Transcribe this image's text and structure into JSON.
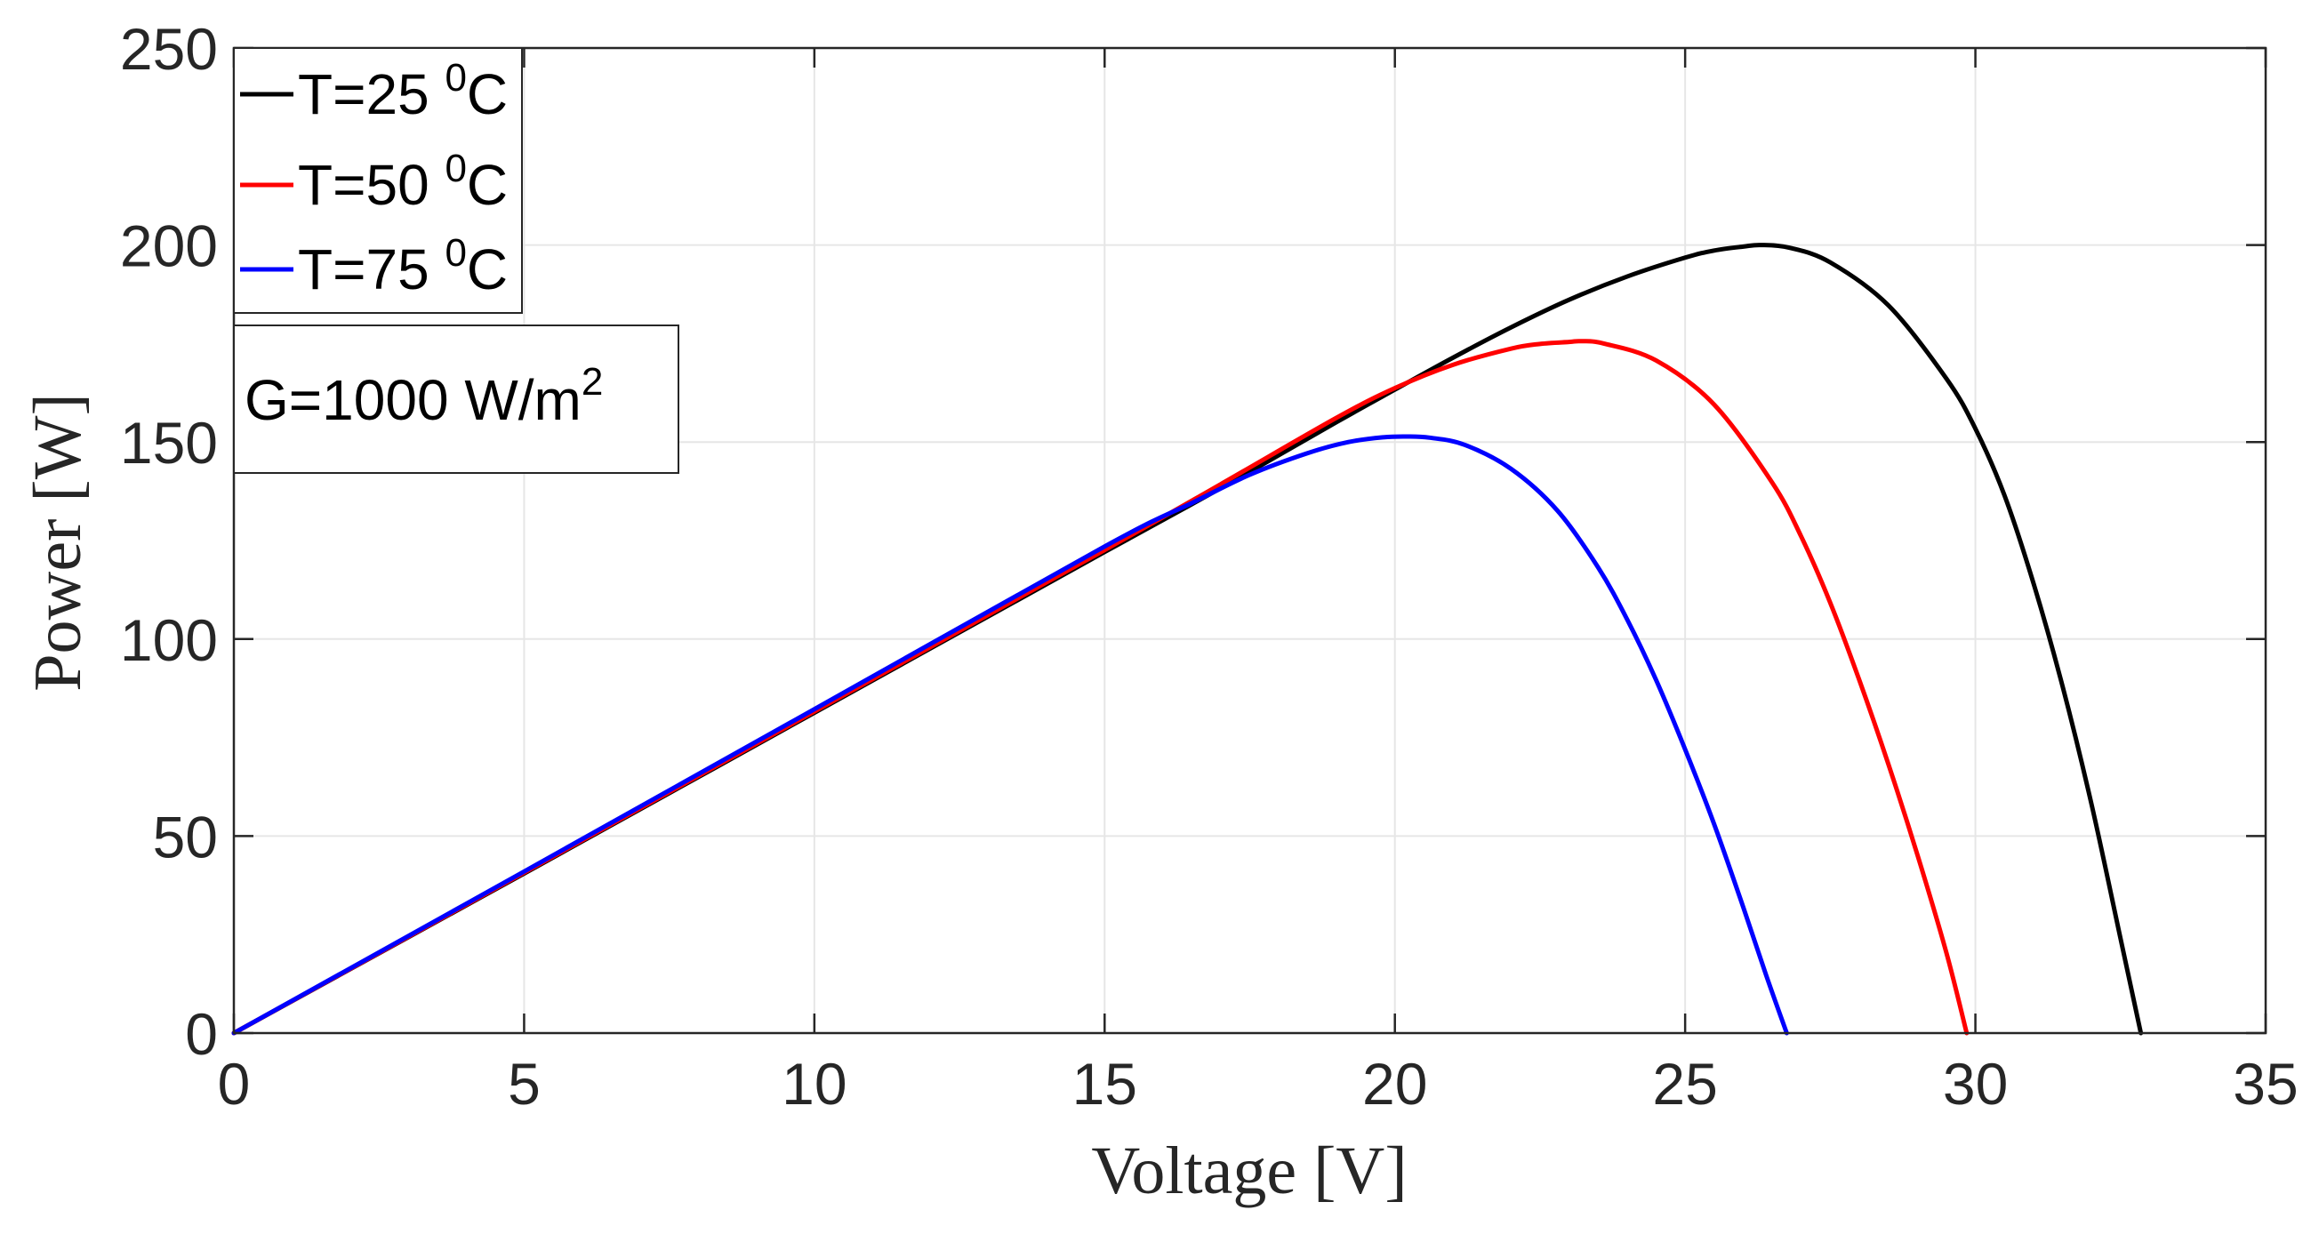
{
  "chart_data": {
    "type": "line",
    "title": "",
    "xlabel": "Voltage [V]",
    "ylabel": "Power [W]",
    "xlim": [
      0,
      35
    ],
    "ylim": [
      0,
      250
    ],
    "xticks": [
      0,
      5,
      10,
      15,
      20,
      25,
      30,
      35
    ],
    "yticks": [
      0,
      50,
      100,
      150,
      200,
      250
    ],
    "grid": true,
    "legend": {
      "placement": "top-left"
    },
    "annotation": {
      "text": "G=1000 W/m",
      "superscript": "2"
    },
    "series": [
      {
        "name": "T=25 0C",
        "label_main": "T=25 ",
        "label_sup": "0",
        "label_unit": "C",
        "color": "#000000",
        "x": [
          0,
          5,
          10,
          15,
          17,
          19,
          20,
          21,
          22,
          23,
          24,
          25,
          25.5,
          26,
          26.3,
          26.8,
          27.5,
          28.5,
          29.5,
          30,
          30.5,
          31,
          31.5,
          32,
          32.5,
          32.85
        ],
        "y": [
          0,
          40.5,
          81.3,
          122.1,
          138.3,
          155.1,
          163.3,
          171.4,
          179.1,
          186.1,
          192.0,
          196.8,
          198.6,
          199.6,
          200.0,
          199.3,
          195.6,
          184.7,
          166.1,
          153.4,
          136.5,
          114.2,
          88.1,
          58.1,
          24.0,
          0
        ]
      },
      {
        "name": "T=50 0C",
        "label_main": "T=50 ",
        "label_sup": "0",
        "label_unit": "C",
        "color": "#ff0000",
        "x": [
          0,
          5,
          10,
          15,
          17,
          19,
          20,
          21,
          22,
          22.5,
          23,
          23.2,
          23.6,
          24.5,
          25.5,
          26.5,
          27,
          27.5,
          28,
          28.5,
          29,
          29.5,
          29.85
        ],
        "y": [
          0,
          40.7,
          81.6,
          122.6,
          139.3,
          156.2,
          163.7,
          169.6,
          173.7,
          174.9,
          175.4,
          175.6,
          175.0,
          170.7,
          159.5,
          139.7,
          126.0,
          109.2,
          89.6,
          68.3,
          45.3,
          20.4,
          0
        ]
      },
      {
        "name": "T=75 0C",
        "label_main": "T=75 ",
        "label_sup": "0",
        "label_unit": "C",
        "color": "#0000ff",
        "x": [
          0,
          5,
          10,
          15,
          16.5,
          17.5,
          18.5,
          19.2,
          19.8,
          20.2,
          20.6,
          21.2,
          22,
          22.8,
          23.5,
          24,
          24.5,
          25,
          25.5,
          26,
          26.4,
          26.75
        ],
        "y": [
          0,
          41.0,
          82.2,
          123.5,
          134.5,
          141.7,
          147.2,
          150.0,
          151.2,
          151.4,
          151.1,
          149.3,
          143.2,
          132.6,
          118.2,
          105.0,
          89.6,
          72.0,
          53.0,
          32.0,
          14.5,
          0
        ]
      }
    ]
  }
}
